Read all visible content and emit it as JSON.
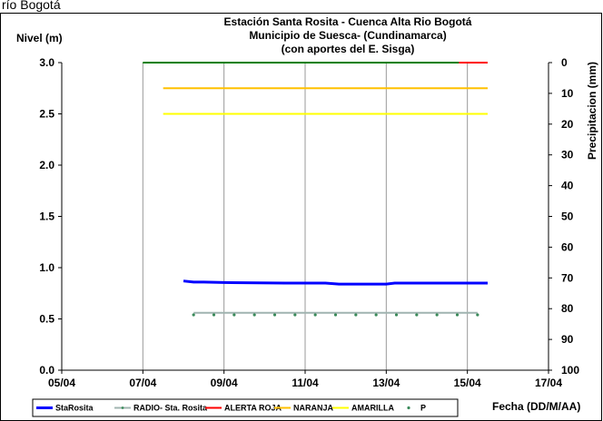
{
  "chart_data": {
    "type": "line",
    "title_top": "río Bogotá",
    "title_lines": [
      "Estación Santa Rosita - Cuenca Alta Rio Bogotá",
      "Municipio de Suesca- (Cundinamarca)",
      "(con aportes del  E. Sisga)"
    ],
    "ylabel_left": "Nivel (m)",
    "ylabel_right": "Precipitacion (mm)",
    "xlabel": "Fecha (DD/M/AA)",
    "x_tick_labels": [
      "05/04",
      "07/04",
      "09/04",
      "11/04",
      "13/04",
      "15/04",
      "17/04"
    ],
    "x_range": [
      "05/04",
      "17/04"
    ],
    "y_left": {
      "min": 0.0,
      "max": 3.0,
      "ticks": [
        "0.0",
        "0.5",
        "1.0",
        "1.5",
        "2.0",
        "2.5",
        "3.0"
      ]
    },
    "y_right": {
      "min": 0,
      "max": 100,
      "inverted": true,
      "ticks": [
        "0",
        "10",
        "20",
        "30",
        "40",
        "50",
        "60",
        "70",
        "80",
        "90",
        "100"
      ]
    },
    "grid": {
      "vertical": true,
      "horizontal": false
    },
    "series": [
      {
        "name": "StaRosita",
        "color": "#0000ff",
        "axis": "left",
        "points": [
          [
            "08/04 00:00",
            0.87
          ],
          [
            "08/04 06:00",
            0.86
          ],
          [
            "08/04 12:00",
            0.86
          ],
          [
            "09/04 00:00",
            0.855
          ],
          [
            "10/04 12:00",
            0.85
          ],
          [
            "11/04 12:00",
            0.85
          ],
          [
            "11/04 20:00",
            0.84
          ],
          [
            "13/04 00:00",
            0.84
          ],
          [
            "13/04 05:00",
            0.85
          ],
          [
            "15/04 12:00",
            0.85
          ]
        ]
      },
      {
        "name": "RADIO- Sta. Rosita",
        "color": "#a0b4b0",
        "axis": "left",
        "points": [
          [
            "08/04 06:00",
            0.56
          ],
          [
            "15/04 06:00",
            0.56
          ]
        ]
      },
      {
        "name": "ALERTA ROJA",
        "color": "#ff0000",
        "axis": "left",
        "points": [
          [
            "14/04 19:00",
            3.0
          ],
          [
            "15/04 12:00",
            3.0
          ]
        ]
      },
      {
        "name": "NARANJA",
        "color": "#ffc000",
        "axis": "left",
        "points": [
          [
            "07/04 12:00",
            2.75
          ],
          [
            "15/04 12:00",
            2.75
          ]
        ]
      },
      {
        "name": "AMARILLA",
        "color": "#ffff00",
        "axis": "left",
        "points": [
          [
            "07/04 12:00",
            2.5
          ],
          [
            "15/04 12:00",
            2.5
          ]
        ]
      },
      {
        "name": "P",
        "color": "#3a8a5a",
        "axis": "right",
        "marker": "dot",
        "points": [
          [
            "08/04 06:00",
            82
          ],
          [
            "08/04 18:00",
            82
          ],
          [
            "09/04 06:00",
            82
          ],
          [
            "09/04 18:00",
            82
          ],
          [
            "10/04 06:00",
            82
          ],
          [
            "10/04 18:00",
            82
          ],
          [
            "11/04 06:00",
            82
          ],
          [
            "11/04 18:00",
            82
          ],
          [
            "12/04 06:00",
            82
          ],
          [
            "12/04 18:00",
            82
          ],
          [
            "13/04 06:00",
            82
          ],
          [
            "13/04 18:00",
            82
          ],
          [
            "14/04 06:00",
            82
          ],
          [
            "14/04 18:00",
            82
          ],
          [
            "15/04 06:00",
            82
          ]
        ]
      }
    ],
    "green_line": {
      "color": "#008000",
      "points": [
        [
          "07/04 00:00",
          3.0
        ],
        [
          "14/04 19:00",
          3.0
        ]
      ]
    },
    "legend": {
      "placement": "bottom-left"
    }
  }
}
